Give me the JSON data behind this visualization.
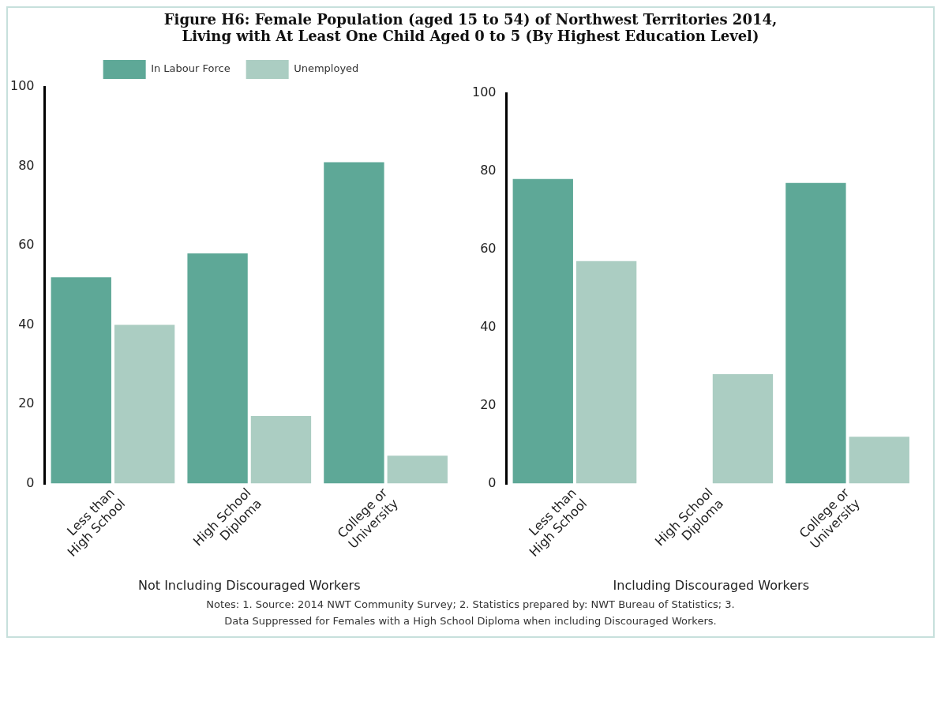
{
  "chart_data": [
    {
      "type": "bar",
      "title": "Figure H6: Female Population (aged 15 to 54) of Northwest Territories 2014,\nLiving with At Least One Child Aged 0 to 5 (By Highest Education Level)",
      "xlabel": "Not Including Discouraged Workers",
      "categories": [
        "Less than High School",
        "High School Diploma",
        "College or University"
      ],
      "series": [
        {
          "name": "In Labour Force",
          "color": "#5ea897",
          "values": [
            52,
            58,
            81
          ]
        },
        {
          "name": "Unemployed",
          "color": "#abcdc2",
          "values": [
            40,
            17,
            7
          ]
        }
      ],
      "ylim": [
        0,
        100
      ],
      "yticks": [
        0,
        20,
        40,
        60,
        80,
        100
      ],
      "grid": false,
      "legend": "top"
    },
    {
      "type": "bar",
      "xlabel": "Including Discouraged Workers",
      "categories": [
        "Less than High School",
        "High School Diploma",
        "College or University"
      ],
      "series": [
        {
          "color": "#5ea897",
          "values": [
            78,
            null,
            77
          ]
        },
        {
          "color": "#abcdc2",
          "values": [
            57,
            28,
            12
          ]
        }
      ],
      "ylim": [
        0,
        100
      ],
      "yticks": [
        0,
        20,
        40,
        60,
        80,
        100
      ],
      "grid": false,
      "legend": false,
      "annotations": [
        "Notes: 1. Source: 2014 NWT Community Survey; 2. Statistics prepared by: NWT Bureau of Statistics; 3.\nData Suppressed for Females  with a High School Diploma when including Discouraged Workers."
      ]
    }
  ]
}
